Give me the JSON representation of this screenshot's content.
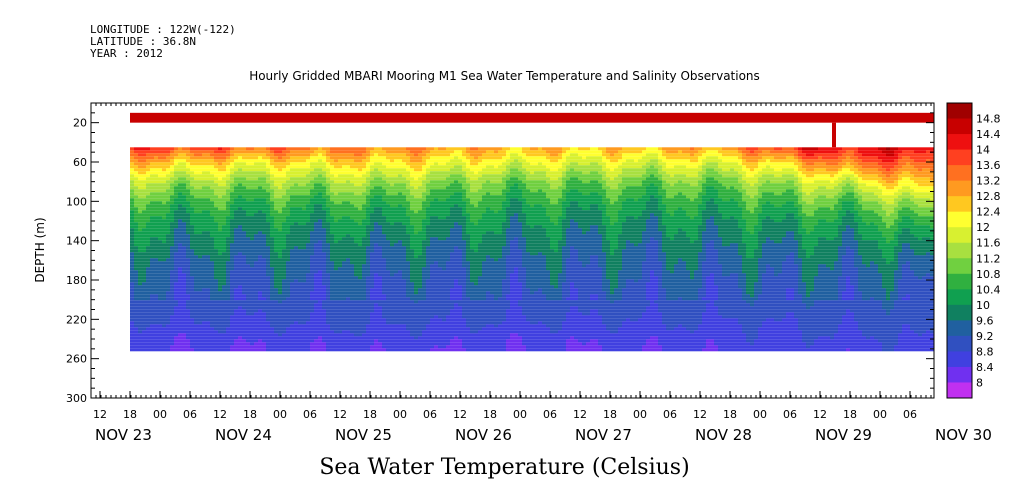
{
  "header": {
    "longitude": "LONGITUDE : 122W(-122)",
    "latitude": "LATITUDE : 36.8N",
    "year": "YEAR : 2012"
  },
  "chart_data": {
    "type": "heatmap",
    "title": "Hourly Gridded MBARI Mooring M1 Sea Water Temperature and Salinity Observations",
    "xlabel": "Sea Water Temperature (Celsius)",
    "ylabel": "DEPTH (m)",
    "x_range_hours": [
      "NOV 23 12:00",
      "NOV 30 12:00"
    ],
    "ylim": [
      300,
      0
    ],
    "y_ticks": [
      20,
      60,
      100,
      140,
      180,
      220,
      260,
      300
    ],
    "hour_tick_labels": [
      "12",
      "18",
      "00",
      "06",
      "12",
      "18",
      "00",
      "06",
      "12",
      "18",
      "00",
      "06",
      "12",
      "18",
      "00",
      "06",
      "12",
      "18",
      "00",
      "06",
      "12",
      "18",
      "00",
      "06",
      "12",
      "18",
      "00",
      "06"
    ],
    "day_labels": [
      "NOV 23",
      "NOV 24",
      "NOV 25",
      "NOV 26",
      "NOV 27",
      "NOV 28",
      "NOV 29",
      "NOV 30"
    ],
    "colorbar": {
      "levels": [
        14.8,
        14.4,
        14,
        13.6,
        13.2,
        12.8,
        12.4,
        12,
        11.6,
        11.2,
        10.8,
        10.4,
        10,
        9.6,
        9.2,
        8.8,
        8.4,
        8
      ],
      "colors": [
        "#a00000",
        "#c80000",
        "#ee1010",
        "#ff4020",
        "#ff7020",
        "#ff9a20",
        "#ffc820",
        "#ffff30",
        "#d8f030",
        "#a8e040",
        "#70d040",
        "#30b040",
        "#10a050",
        "#108060",
        "#2060a0",
        "#3050c0",
        "#4040e0",
        "#7030f0",
        "#c030f0"
      ]
    },
    "surface_band": {
      "depth_top": 10,
      "depth_bottom": 20,
      "temperature": 14.6
    },
    "data_gap": {
      "depth_top": 20,
      "depth_bottom": 45
    },
    "data_depth_range": [
      45,
      250
    ],
    "profile_depths": [
      45,
      60,
      80,
      100,
      120,
      140,
      160,
      180,
      200,
      220,
      240,
      250
    ],
    "profiles": [
      {
        "day_offset": 0.25,
        "temps": [
          13.8,
          12.6,
          11.4,
          10.6,
          10.1,
          9.8,
          9.4,
          9.2,
          9.0,
          8.8,
          8.5,
          8.4
        ]
      },
      {
        "day_offset": 1.0,
        "temps": [
          13.4,
          12.2,
          11.2,
          10.5,
          10.0,
          9.7,
          9.4,
          9.2,
          9.0,
          8.8,
          8.5,
          8.4
        ]
      },
      {
        "day_offset": 2.0,
        "temps": [
          13.2,
          12.4,
          11.4,
          10.6,
          10.1,
          9.7,
          9.4,
          9.2,
          9.0,
          8.9,
          8.6,
          8.5
        ]
      },
      {
        "day_offset": 3.0,
        "temps": [
          12.8,
          12.0,
          11.0,
          10.4,
          10.0,
          9.7,
          9.4,
          9.2,
          9.0,
          8.8,
          8.5,
          8.4
        ]
      },
      {
        "day_offset": 4.0,
        "temps": [
          12.6,
          11.8,
          10.9,
          10.3,
          9.9,
          9.6,
          9.4,
          9.2,
          9.0,
          8.8,
          8.5,
          8.4
        ]
      },
      {
        "day_offset": 5.0,
        "temps": [
          13.0,
          12.0,
          11.0,
          10.4,
          10.0,
          9.7,
          9.4,
          9.2,
          9.0,
          8.8,
          8.6,
          8.5
        ]
      },
      {
        "day_offset": 5.6,
        "temps": [
          14.2,
          12.8,
          11.6,
          10.8,
          10.2,
          9.8,
          9.5,
          9.3,
          9.1,
          8.9,
          8.7,
          8.6
        ]
      },
      {
        "day_offset": 6.0,
        "temps": [
          14.2,
          13.4,
          11.8,
          10.8,
          10.2,
          9.8,
          9.5,
          9.3,
          9.1,
          8.9,
          8.7,
          8.6
        ]
      },
      {
        "day_offset": 6.5,
        "temps": [
          14.4,
          13.6,
          12.6,
          11.4,
          10.6,
          10.0,
          9.6,
          9.3,
          9.1,
          9.0,
          8.8,
          8.7
        ]
      },
      {
        "day_offset": 7.0,
        "temps": [
          14.4,
          14.0,
          13.4,
          12.2,
          11.2,
          10.4,
          9.8,
          9.4,
          9.2,
          9.0,
          8.9,
          8.8
        ]
      }
    ]
  }
}
